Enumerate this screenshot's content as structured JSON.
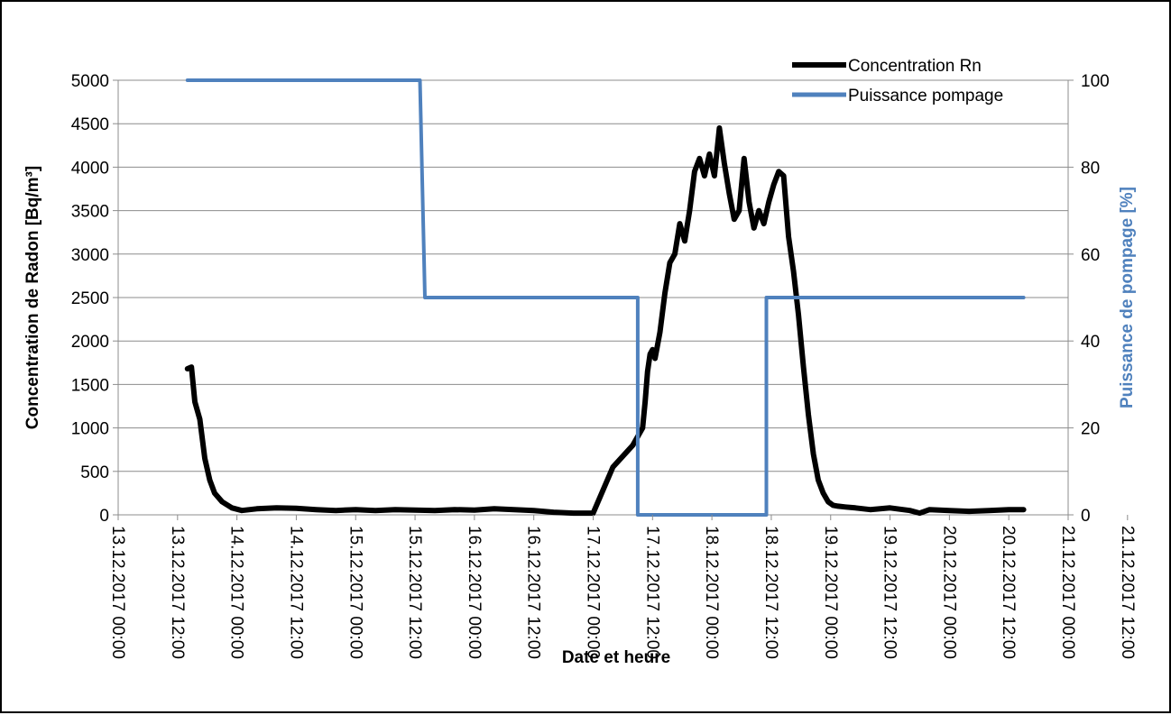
{
  "chart_data": {
    "type": "line",
    "xlabel": "Date et heure",
    "ylabel_left": "Concentration de Radon  [Bq/m³]",
    "ylabel_right": "Puissance de pompage [%]",
    "ylim_left": [
      0,
      5000
    ],
    "yticks_left": [
      0,
      500,
      1000,
      1500,
      2000,
      2500,
      3000,
      3500,
      4000,
      4500,
      5000
    ],
    "ylim_right": [
      0,
      100
    ],
    "yticks_right": [
      0,
      20,
      40,
      60,
      80,
      100
    ],
    "xlim_hours": [
      0,
      192
    ],
    "x_tick_labels": [
      "13.12.2017 00:00",
      "13.12.2017 12:00",
      "14.12.2017 00:00",
      "14.12.2017 12:00",
      "15.12.2017 00:00",
      "15.12.2017 12:00",
      "16.12.2017 00:00",
      "16.12.2017 12:00",
      "17.12.2017 00:00",
      "17.12.2017 12:00",
      "18.12.2017 00:00",
      "18.12.2017 12:00",
      "19.12.2017 00:00",
      "19.12.2017 12:00",
      "20.12.2017 00:00",
      "20.12.2017 12:00",
      "21.12.2017 00:00",
      "21.12.2017 12:00"
    ],
    "grid": "horizontal",
    "legend": "top-right",
    "colors": {
      "radon": "#000000",
      "pump": "#4f81bd",
      "right_axis_label": "#4f81bd"
    },
    "series": [
      {
        "name": "Concentration Rn",
        "axis": "left",
        "x_hours": [
          14,
          14.8,
          15.5,
          16.5,
          17.5,
          18.5,
          19.5,
          21,
          23,
          25,
          28,
          32,
          36,
          40,
          44,
          48,
          52,
          56,
          60,
          64,
          68,
          72,
          76,
          80,
          84,
          88,
          92,
          96,
          100,
          104,
          106,
          106.5,
          107,
          107.5,
          108,
          108.5,
          109.5,
          110.5,
          111.5,
          112.5,
          113.5,
          114.5,
          115.5,
          116.5,
          117.5,
          118.5,
          119.5,
          120.5,
          121.5,
          122.5,
          123.5,
          124.5,
          125.5,
          126.5,
          127.5,
          128.5,
          129.5,
          130.5,
          131.5,
          132.5,
          133.5,
          134.5,
          135.5,
          136.5,
          137.5,
          138.5,
          139.5,
          140.5,
          141.5,
          142.5,
          143.5,
          144.5,
          145.5,
          147,
          149,
          152,
          156,
          160,
          162,
          164,
          168,
          172,
          176,
          180,
          183
        ],
        "values": [
          1680,
          1700,
          1300,
          1100,
          650,
          400,
          250,
          150,
          80,
          50,
          70,
          80,
          75,
          60,
          50,
          60,
          50,
          60,
          55,
          50,
          60,
          55,
          70,
          60,
          50,
          30,
          20,
          20,
          550,
          800,
          1000,
          1300,
          1650,
          1850,
          1900,
          1800,
          2100,
          2550,
          2900,
          3000,
          3350,
          3150,
          3500,
          3950,
          4100,
          3900,
          4150,
          3900,
          4450,
          4050,
          3700,
          3400,
          3500,
          4100,
          3600,
          3300,
          3500,
          3350,
          3600,
          3800,
          3950,
          3900,
          3200,
          2800,
          2300,
          1700,
          1150,
          700,
          400,
          250,
          150,
          110,
          100,
          90,
          80,
          60,
          80,
          50,
          20,
          60,
          50,
          40,
          50,
          60,
          60
        ]
      },
      {
        "name": "Puissance pompage",
        "axis": "right",
        "x_hours": [
          14,
          61,
          62,
          105,
          105,
          131,
          131,
          132,
          183
        ],
        "values": [
          100,
          100,
          50,
          50,
          0,
          0,
          50,
          50,
          50
        ]
      }
    ]
  }
}
